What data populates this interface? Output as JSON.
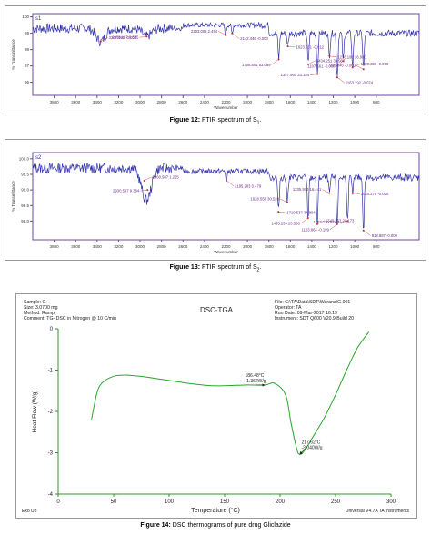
{
  "chart_data": [
    {
      "type": "line",
      "series_label": "s1",
      "xlabel": "Wavenumber",
      "ylabel": "% Transmittance",
      "xlim": [
        4000,
        400
      ],
      "ylim": [
        95.2,
        100.2
      ],
      "x_ticks": [
        "3800",
        "3600",
        "3400",
        "3200",
        "3000",
        "2800",
        "2600",
        "2400",
        "2200",
        "2000",
        "1800",
        "1600",
        "1400",
        "1200",
        "1000",
        "800"
      ],
      "y_ticks": [
        "100",
        "99",
        "98",
        "97",
        "96"
      ],
      "peaks": [
        {
          "label": "3367.580  -0.000",
          "x": 3367.58,
          "y": 98.5
        },
        {
          "label": "2938.127  6.535",
          "x": 2938.127,
          "y": 98.8
        },
        {
          "label": "2142.446  -0.000",
          "x": 2142.446,
          "y": 99.0
        },
        {
          "label": "2203.005  2.494",
          "x": 2203.005,
          "y": 98.9
        },
        {
          "label": "1623.931  -0.012",
          "x": 1623.931,
          "y": 98.2
        },
        {
          "label": "1708.501  53.069",
          "x": 1708.501,
          "y": 97.4
        },
        {
          "label": "1434.251  30.907",
          "x": 1434.251,
          "y": 97.1
        },
        {
          "label": "1347.967  33.154",
          "x": 1347.967,
          "y": 96.5
        },
        {
          "label": "1163.192  -0.074",
          "x": 1163.192,
          "y": 96.3
        },
        {
          "label": "918.846  -0.000",
          "x": 918.846,
          "y": 96.8
        },
        {
          "label": "1236.196  16.930",
          "x": 1236.196,
          "y": 97.6
        },
        {
          "label": "1107.561  -0.000",
          "x": 1107.561,
          "y": 97.3
        },
        {
          "label": "1020.369  -0.000",
          "x": 1020.369,
          "y": 96.9
        }
      ]
    },
    {
      "type": "line",
      "series_label": "s2",
      "xlabel": "Wavenumber",
      "ylabel": "% Transmittance",
      "xlim": [
        4000,
        400
      ],
      "ylim": [
        97.4,
        100.2
      ],
      "x_ticks": [
        "3800",
        "3600",
        "3400",
        "3200",
        "3000",
        "2800",
        "2600",
        "2400",
        "2200",
        "2000",
        "1800",
        "1600",
        "1400",
        "1200",
        "1000",
        "800"
      ],
      "y_ticks": [
        "100.0",
        "99.5",
        "99.0",
        "98.5",
        "98.0"
      ],
      "peaks": [
        {
          "label": "2960.987  1.225",
          "x": 2960.987,
          "y": 99.3
        },
        {
          "label": "2930.597  9.364",
          "x": 2930.597,
          "y": 99.0
        },
        {
          "label": "2195.283  0.479",
          "x": 2195.283,
          "y": 99.3
        },
        {
          "label": "1628.556  30.526",
          "x": 1628.556,
          "y": 98.6
        },
        {
          "label": "1710.537  34.894",
          "x": 1710.537,
          "y": 98.3
        },
        {
          "label": "1435.239  23.556",
          "x": 1435.239,
          "y": 98.1
        },
        {
          "label": "1349.263  20.173",
          "x": 1349.263,
          "y": 97.9
        },
        {
          "label": "1067.110  5.046",
          "x": 1067.11,
          "y": 98.0
        },
        {
          "label": "918.887  -0.000",
          "x": 918.887,
          "y": 97.7
        },
        {
          "label": "1235.970  16.441",
          "x": 1235.97,
          "y": 98.9
        },
        {
          "label": "1020.278  -0.000",
          "x": 1020.278,
          "y": 98.9
        },
        {
          "label": "1163.864  -0.199",
          "x": 1163.864,
          "y": 97.9
        }
      ]
    },
    {
      "type": "line",
      "title": "DSC-TGA",
      "xlabel": "Temperature (°C)",
      "ylabel": "Heat Flow (W/g)",
      "xlim": [
        0,
        300
      ],
      "ylim": [
        -4,
        0
      ],
      "x_ticks": [
        "0",
        "50",
        "100",
        "150",
        "200",
        "250",
        "300"
      ],
      "y_ticks": [
        "0",
        "-1",
        "-2",
        "-3",
        "-4"
      ],
      "series": [
        {
          "x": [
            30,
            35,
            40,
            50,
            60,
            70,
            80,
            100,
            120,
            140,
            160,
            170,
            186.48,
            195,
            205,
            210,
            215,
            217.6,
            222,
            230,
            240,
            250,
            260,
            270,
            280
          ],
          "y": [
            -2.2,
            -1.55,
            -1.3,
            -1.15,
            -1.12,
            -1.14,
            -1.17,
            -1.25,
            -1.33,
            -1.38,
            -1.37,
            -1.36,
            -1.36,
            -1.32,
            -1.6,
            -2.3,
            -2.9,
            -3.04,
            -2.95,
            -2.6,
            -2.15,
            -1.6,
            -1.0,
            -0.45,
            -0.08
          ]
        }
      ],
      "annotations": [
        {
          "text": "186.48°C",
          "text2": "-1.362W/g",
          "x": 186.48,
          "y": -1.362
        },
        {
          "text": "217.62°C",
          "text2": "-3.040W/g",
          "x": 217.62,
          "y": -3.04
        }
      ]
    }
  ],
  "dsc_header": {
    "sample": "Sample: G",
    "size": "Size: 3.0700 mg",
    "method": "Method: Ramp",
    "comment": "Comment: TG- DSC in Nitrogen @ 10 C/min",
    "file": "File: C:\\TA\\Data\\SDT\\Warana\\G.001",
    "operator": "Operator: TA",
    "run_date": "Run Date: 09-Mar-2017 16:19",
    "instrument": "Instrument: SDT Q600 V20.9 Build 20"
  },
  "dsc_footer": {
    "exo": "Exo Up",
    "universal": "Universal V4.7A TA Instruments"
  },
  "captions": {
    "fig12_bold": "Figure 12:",
    "fig12_text": " FTIR spectrum of S",
    "fig12_sub": "1",
    "fig12_end": ".",
    "fig13_bold": "Figure 13:",
    "fig13_text": " FTIR spectrum of S",
    "fig13_sub": "2",
    "fig13_end": ".",
    "fig14_bold": "Figure 14:",
    "fig14_text": " DSC thermograms of pure drug Gliclazide"
  },
  "colors": {
    "ftir_line": "#3333aa",
    "ftir_axes": "#6b4aa0",
    "annotation": "#cc2222",
    "dsc_line": "#2aa52a",
    "dsc_axes": "#2a9a2a",
    "dsc_marker": "#003300"
  }
}
